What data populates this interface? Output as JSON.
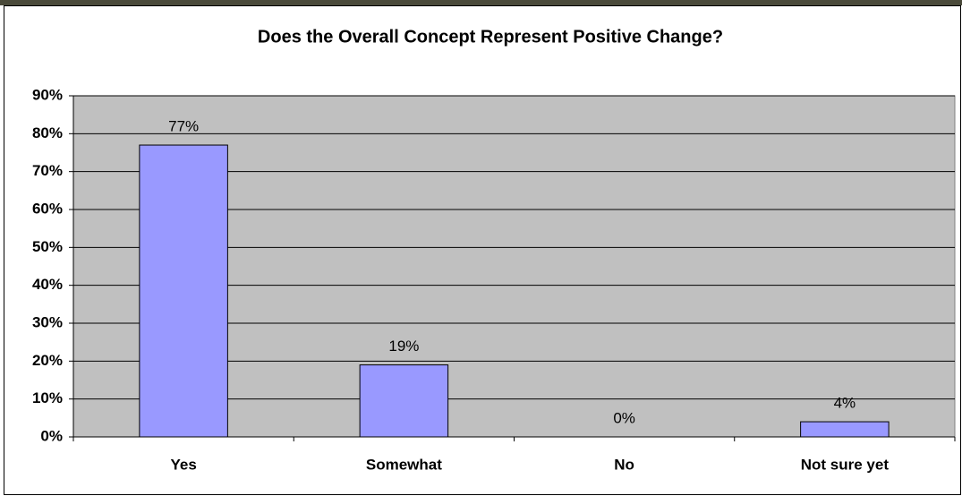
{
  "chart_data": {
    "type": "bar",
    "title": "Does the Overall Concept Represent Positive Change?",
    "categories": [
      "Yes",
      "Somewhat",
      "No",
      "Not sure yet"
    ],
    "values": [
      77,
      19,
      0,
      4
    ],
    "value_labels": [
      "77%",
      "19%",
      "0%",
      "4%"
    ],
    "color": "#9999ff",
    "plot_background": "#c0c0c0",
    "ylim": [
      0,
      90
    ],
    "yticks": [
      {
        "value": 0,
        "label": "0%"
      },
      {
        "value": 10,
        "label": "10%"
      },
      {
        "value": 20,
        "label": "20%"
      },
      {
        "value": 30,
        "label": "30%"
      },
      {
        "value": 40,
        "label": "40%"
      },
      {
        "value": 50,
        "label": "50%"
      },
      {
        "value": 60,
        "label": "60%"
      },
      {
        "value": 70,
        "label": "70%"
      },
      {
        "value": 80,
        "label": "80%"
      },
      {
        "value": 90,
        "label": "90%"
      }
    ],
    "grid": true
  }
}
